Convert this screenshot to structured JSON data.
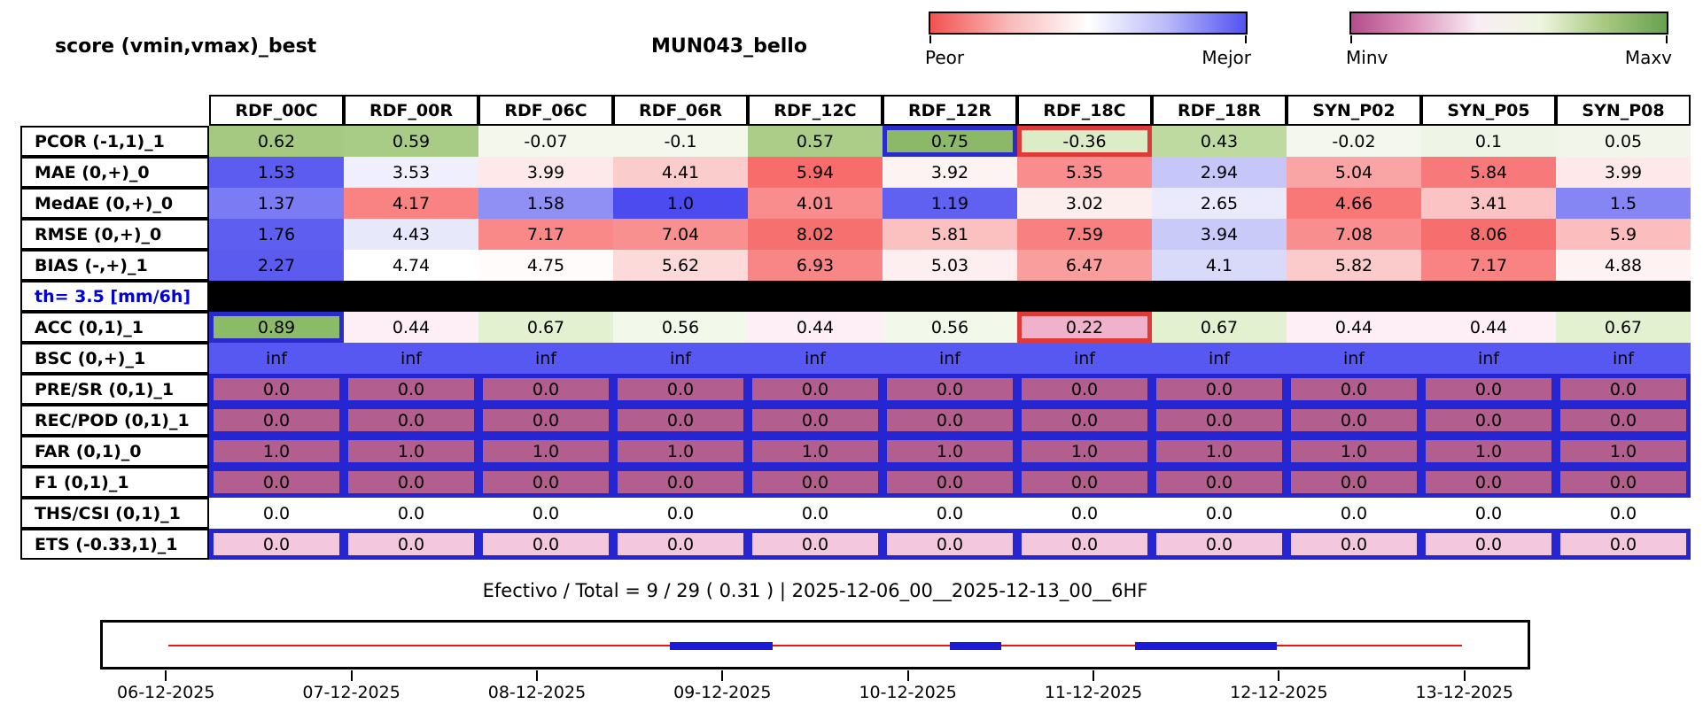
{
  "chart_data": {
    "type": "heatmap",
    "title": "MUN043_bello",
    "subtitle": "score (vmin,vmax)_best",
    "legend_position": "top-right",
    "colorbars": [
      {
        "name": "performance-colorbar",
        "left_label": "Peor",
        "right_label": "Mejor",
        "stops": [
          "#f25252",
          "#f9b9b9",
          "#ffffff",
          "#b9b9f9",
          "#5252f2"
        ]
      },
      {
        "name": "value-range-colorbar",
        "left_label": "Minv",
        "right_label": "Maxv",
        "stops": [
          "#b44d8c",
          "#dd95bd",
          "#f9edf4",
          "#eef5df",
          "#a9c981",
          "#68a150"
        ]
      }
    ],
    "columns": [
      "RDF_00C",
      "RDF_00R",
      "RDF_06C",
      "RDF_06R",
      "RDF_12C",
      "RDF_12R",
      "RDF_18C",
      "RDF_18R",
      "SYN_P02",
      "SYN_P05",
      "SYN_P08"
    ],
    "rows": [
      {
        "label": "PCOR (-1,1)_1",
        "style": "heatmap",
        "best_col": 5,
        "worst_col": 6,
        "values": [
          "0.62",
          "0.59",
          "-0.07",
          "-0.1",
          "0.57",
          "0.75",
          "-0.36",
          "0.43",
          "-0.02",
          "0.1",
          "0.05"
        ],
        "colors": [
          "#a5c981",
          "#a8cb85",
          "#f3f7ec",
          "#f3f7ec",
          "#abcd88",
          "#8cb968",
          "#dcecc6",
          "#bedaa0",
          "#f4f7ee",
          "#eff5e6",
          "#f2f6ea"
        ]
      },
      {
        "label": "MAE (0,+)_0",
        "style": "heatmap",
        "values": [
          "1.53",
          "3.53",
          "3.99",
          "4.41",
          "5.94",
          "3.92",
          "5.35",
          "2.94",
          "5.04",
          "5.84",
          "3.99"
        ],
        "colors": [
          "#5c5cf0",
          "#efeffd",
          "#fde9e9",
          "#fbcccc",
          "#f86c6c",
          "#fdf3f3",
          "#f98d8d",
          "#c6c6f8",
          "#faa5a5",
          "#f87979",
          "#fde9e9"
        ]
      },
      {
        "label": "MedAE (0,+)_0",
        "style": "heatmap",
        "values": [
          "1.37",
          "4.17",
          "1.58",
          "1.0",
          "4.01",
          "1.19",
          "3.02",
          "2.65",
          "4.66",
          "3.41",
          "1.5"
        ],
        "colors": [
          "#7b7bf3",
          "#f98282",
          "#8f8ff4",
          "#4b4bef",
          "#f98c8c",
          "#6060f1",
          "#fdeeee",
          "#eaeafc",
          "#f87777",
          "#fbc3c3",
          "#8585f3"
        ]
      },
      {
        "label": "RMSE (0,+)_0",
        "style": "heatmap",
        "values": [
          "1.76",
          "4.43",
          "7.17",
          "7.04",
          "8.02",
          "5.81",
          "7.59",
          "3.94",
          "7.08",
          "8.06",
          "5.9"
        ],
        "colors": [
          "#5e5ef1",
          "#e8e8fb",
          "#f98989",
          "#f99090",
          "#f77070",
          "#fbc1c1",
          "#f98080",
          "#cacaf9",
          "#f98e8e",
          "#f76e6e",
          "#fbbdbd"
        ]
      },
      {
        "label": "BIAS (-,+)_1",
        "style": "heatmap",
        "values": [
          "2.27",
          "4.74",
          "4.75",
          "5.62",
          "6.93",
          "5.03",
          "6.47",
          "4.1",
          "5.82",
          "7.17",
          "4.88"
        ],
        "colors": [
          "#5b5bf0",
          "#ffffff",
          "#fffbfb",
          "#fcdada",
          "#f98686",
          "#fdefef",
          "#f99d9d",
          "#d9d9fa",
          "#fbcaca",
          "#f98282",
          "#fef2f2"
        ]
      },
      {
        "label": "th= 3.5 [mm/6h]",
        "style": "separator"
      },
      {
        "label": "ACC (0,1)_1",
        "style": "heatmap",
        "best_col": 0,
        "worst_col": 6,
        "values": [
          "0.89",
          "0.44",
          "0.67",
          "0.56",
          "0.44",
          "0.56",
          "0.22",
          "0.67",
          "0.44",
          "0.44",
          "0.67"
        ],
        "colors": [
          "#8cbb68",
          "#fdeff5",
          "#e3f1d0",
          "#f2f8ea",
          "#fdeff5",
          "#f2f8ea",
          "#efb2ca",
          "#e3f1d0",
          "#fdeff5",
          "#fdeff5",
          "#e3f1d0"
        ]
      },
      {
        "label": "BSC (0,+)_1",
        "style": "fill",
        "fill": "#5757f2",
        "values": [
          "inf",
          "inf",
          "inf",
          "inf",
          "inf",
          "inf",
          "inf",
          "inf",
          "inf",
          "inf",
          "inf"
        ]
      },
      {
        "label": "PRE/SR (0,1)_1",
        "style": "fill-bordered",
        "fill": "#b25e8e",
        "values": [
          "0.0",
          "0.0",
          "0.0",
          "0.0",
          "0.0",
          "0.0",
          "0.0",
          "0.0",
          "0.0",
          "0.0",
          "0.0"
        ]
      },
      {
        "label": "REC/POD (0,1)_1",
        "style": "fill-bordered",
        "fill": "#b25e8e",
        "values": [
          "0.0",
          "0.0",
          "0.0",
          "0.0",
          "0.0",
          "0.0",
          "0.0",
          "0.0",
          "0.0",
          "0.0",
          "0.0"
        ]
      },
      {
        "label": "FAR (0,1)_0",
        "style": "fill-bordered",
        "fill": "#b25e8e",
        "values": [
          "1.0",
          "1.0",
          "1.0",
          "1.0",
          "1.0",
          "1.0",
          "1.0",
          "1.0",
          "1.0",
          "1.0",
          "1.0"
        ]
      },
      {
        "label": "F1 (0,1)_1",
        "style": "fill-bordered",
        "fill": "#b25e8e",
        "values": [
          "0.0",
          "0.0",
          "0.0",
          "0.0",
          "0.0",
          "0.0",
          "0.0",
          "0.0",
          "0.0",
          "0.0",
          "0.0"
        ]
      },
      {
        "label": "THS/CSI (0,1)_1",
        "style": "fill",
        "fill": "#ffffff",
        "values": [
          "0.0",
          "0.0",
          "0.0",
          "0.0",
          "0.0",
          "0.0",
          "0.0",
          "0.0",
          "0.0",
          "0.0",
          "0.0"
        ]
      },
      {
        "label": "ETS (-0.33,1)_1",
        "style": "fill-bordered",
        "fill": "#f3c7dd",
        "values": [
          "0.0",
          "0.0",
          "0.0",
          "0.0",
          "0.0",
          "0.0",
          "0.0",
          "0.0",
          "0.0",
          "0.0",
          "0.0"
        ]
      }
    ],
    "caption": "Efectivo / Total  =  9 / 29 ( 0.31 ) | 2025-12-06_00__2025-12-13_00__6HF",
    "timeline": {
      "tick_labels": [
        "06-12-2025",
        "07-12-2025",
        "08-12-2025",
        "09-12-2025",
        "10-12-2025",
        "11-12-2025",
        "12-12-2025",
        "13-12-2025"
      ],
      "line_color": "#e81515",
      "segment_color": "#1c1cd8",
      "line_span": [
        0.0,
        1.0
      ],
      "segments": [
        [
          0.388,
          0.467
        ],
        [
          0.604,
          0.644
        ],
        [
          0.747,
          0.857
        ]
      ]
    }
  }
}
